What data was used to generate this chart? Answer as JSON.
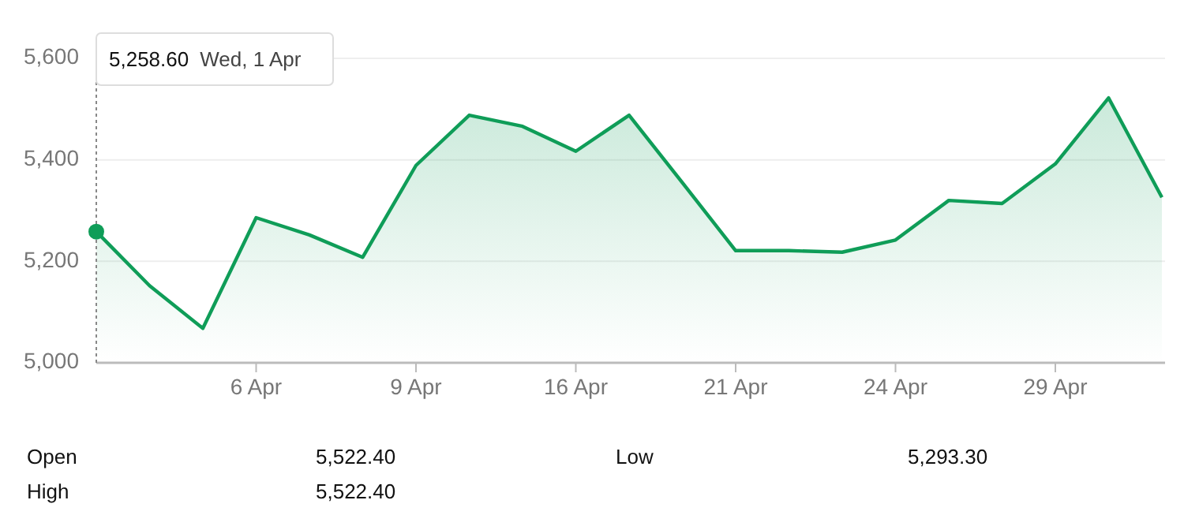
{
  "chart_data": {
    "type": "area",
    "categories": [
      null,
      null,
      null,
      "6 Apr",
      null,
      null,
      "9 Apr",
      null,
      null,
      "16 Apr",
      null,
      null,
      "21 Apr",
      null,
      null,
      "24 Apr",
      null,
      null,
      "29 Apr",
      null,
      null
    ],
    "series": [
      {
        "color": "#0f9d58",
        "values": [
          5258.6,
          5152,
          5068,
          5286,
          5252,
          5208,
          5389,
          5488,
          5466,
          5417,
          5488,
          5355,
          5221,
          5221,
          5218,
          5242,
          5320,
          5314,
          5392,
          5522,
          5326
        ]
      }
    ],
    "ylim": [
      5000,
      5600
    ],
    "yticks": [
      {
        "value": 5000,
        "label": "5,000"
      },
      {
        "value": 5200,
        "label": "5,200"
      },
      {
        "value": 5400,
        "label": "5,400"
      },
      {
        "value": 5600,
        "label": "5,600"
      }
    ],
    "grid": "y",
    "annotations": [
      "5,258.60 Wed, 1 Apr",
      "Open",
      "5,522.40",
      "High",
      "5,522.40",
      "Low",
      "5,293.30"
    ]
  }
}
